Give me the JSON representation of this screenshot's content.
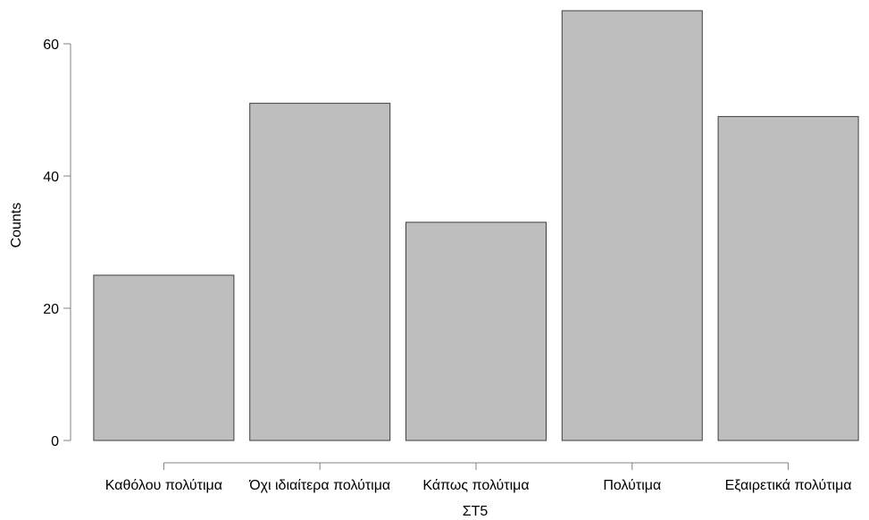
{
  "chart_data": {
    "type": "bar",
    "categories": [
      "Καθόλου πολύτιμα",
      "Όχι ιδιαίτερα πολύτιμα",
      "Κάπως πολύτιμα",
      "Πολύτιμα",
      "Εξαιρετικά πολύτιμα"
    ],
    "values": [
      25,
      51,
      33,
      65,
      49
    ],
    "xlabel": "ΣΤ5",
    "ylabel": "Counts",
    "ylim": [
      0,
      66
    ],
    "yticks": [
      0,
      20,
      40,
      60
    ],
    "grid": false,
    "colors": {
      "bar_fill": "#bebebe",
      "bar_stroke": "#404040",
      "axis": "#808080"
    }
  }
}
